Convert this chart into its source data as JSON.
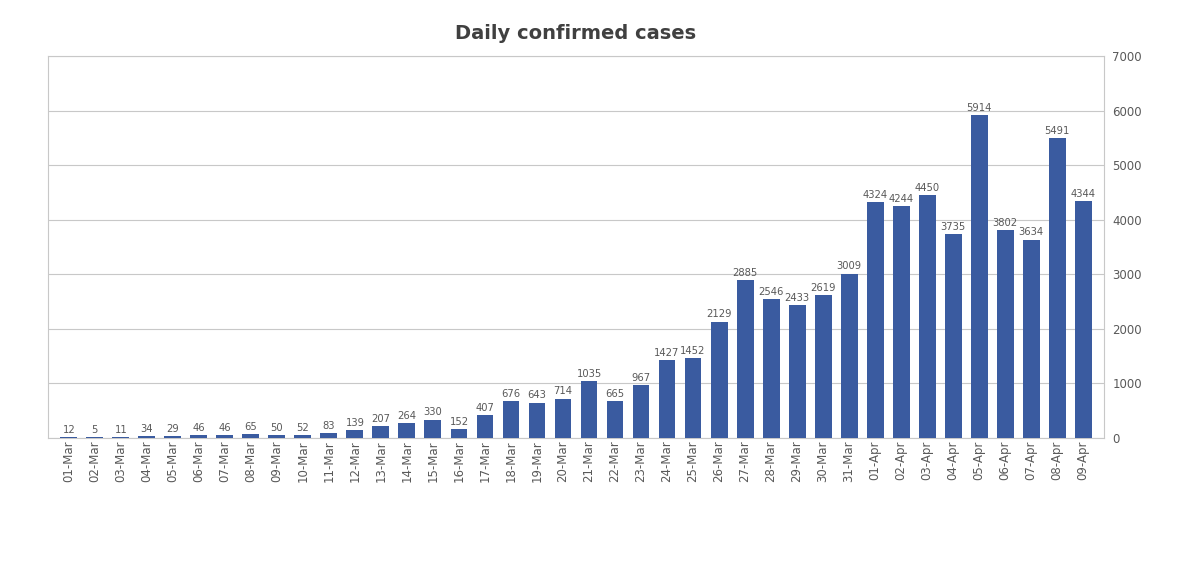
{
  "title": "Daily confirmed cases",
  "categories": [
    "01-Mar",
    "02-Mar",
    "03-Mar",
    "04-Mar",
    "05-Mar",
    "06-Mar",
    "07-Mar",
    "08-Mar",
    "09-Mar",
    "10-Mar",
    "11-Mar",
    "12-Mar",
    "13-Mar",
    "14-Mar",
    "15-Mar",
    "16-Mar",
    "17-Mar",
    "18-Mar",
    "19-Mar",
    "20-Mar",
    "21-Mar",
    "22-Mar",
    "23-Mar",
    "24-Mar",
    "25-Mar",
    "26-Mar",
    "27-Mar",
    "28-Mar",
    "29-Mar",
    "30-Mar",
    "31-Mar",
    "01-Apr",
    "02-Apr",
    "03-Apr",
    "04-Apr",
    "05-Apr",
    "06-Apr",
    "07-Apr",
    "08-Apr",
    "09-Apr"
  ],
  "values": [
    12,
    5,
    11,
    34,
    29,
    46,
    46,
    65,
    50,
    52,
    83,
    139,
    207,
    264,
    330,
    152,
    407,
    676,
    643,
    714,
    1035,
    665,
    967,
    1427,
    1452,
    2129,
    2885,
    2546,
    2433,
    2619,
    3009,
    4324,
    4244,
    4450,
    3735,
    5914,
    3802,
    3634,
    5491,
    4344
  ],
  "bar_color": "#3A5BA0",
  "background_color": "#FFFFFF",
  "plot_bg_color": "#FFFFFF",
  "grid_color": "#C8C8C8",
  "border_color": "#C8C8C8",
  "label_color": "#595959",
  "title_fontsize": 14,
  "tick_fontsize": 8.5,
  "value_fontsize": 7.2,
  "ylim": [
    0,
    7000
  ],
  "yticks": [
    0,
    1000,
    2000,
    3000,
    4000,
    5000,
    6000,
    7000
  ],
  "bar_width": 0.65
}
